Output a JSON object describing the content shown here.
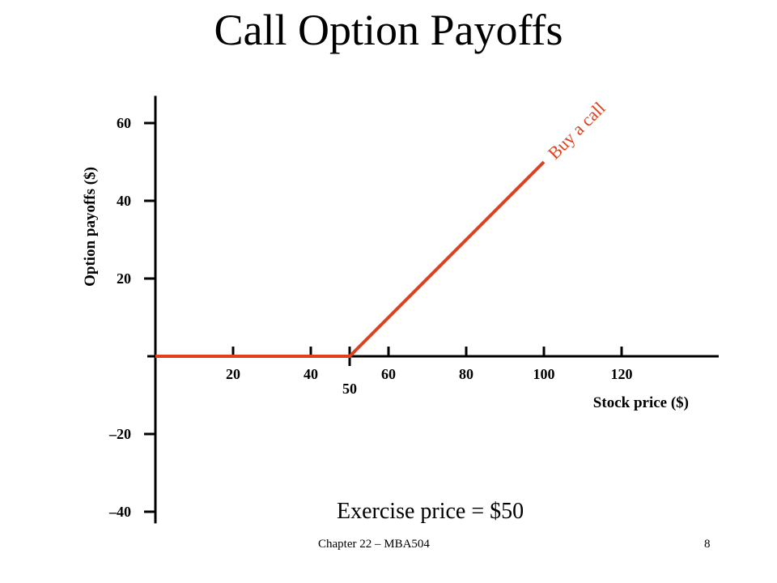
{
  "slide": {
    "title": "Call Option Payoffs",
    "annotation": "Exercise price = $50",
    "footer_left": "Chapter 22 – MBA504",
    "page_number": "8"
  },
  "chart_data": {
    "type": "line",
    "xlabel": "Stock price ($)",
    "ylabel": "Option payoffs ($)",
    "x_ticks": [
      20,
      40,
      50,
      60,
      80,
      100,
      120
    ],
    "x_tick_labels": [
      "20",
      "40",
      "50",
      "60",
      "80",
      "100",
      "120"
    ],
    "y_ticks": [
      -40,
      -20,
      20,
      40,
      60
    ],
    "y_tick_labels": [
      "–40",
      "–20",
      "20",
      "40",
      "60"
    ],
    "xlim": [
      0,
      145
    ],
    "ylim": [
      -43,
      67
    ],
    "series": [
      {
        "name": "Buy a call",
        "x": [
          0,
          50,
          100
        ],
        "y": [
          0,
          0,
          50
        ],
        "color": "#e2401c"
      }
    ],
    "grid": false,
    "legend": "none"
  }
}
